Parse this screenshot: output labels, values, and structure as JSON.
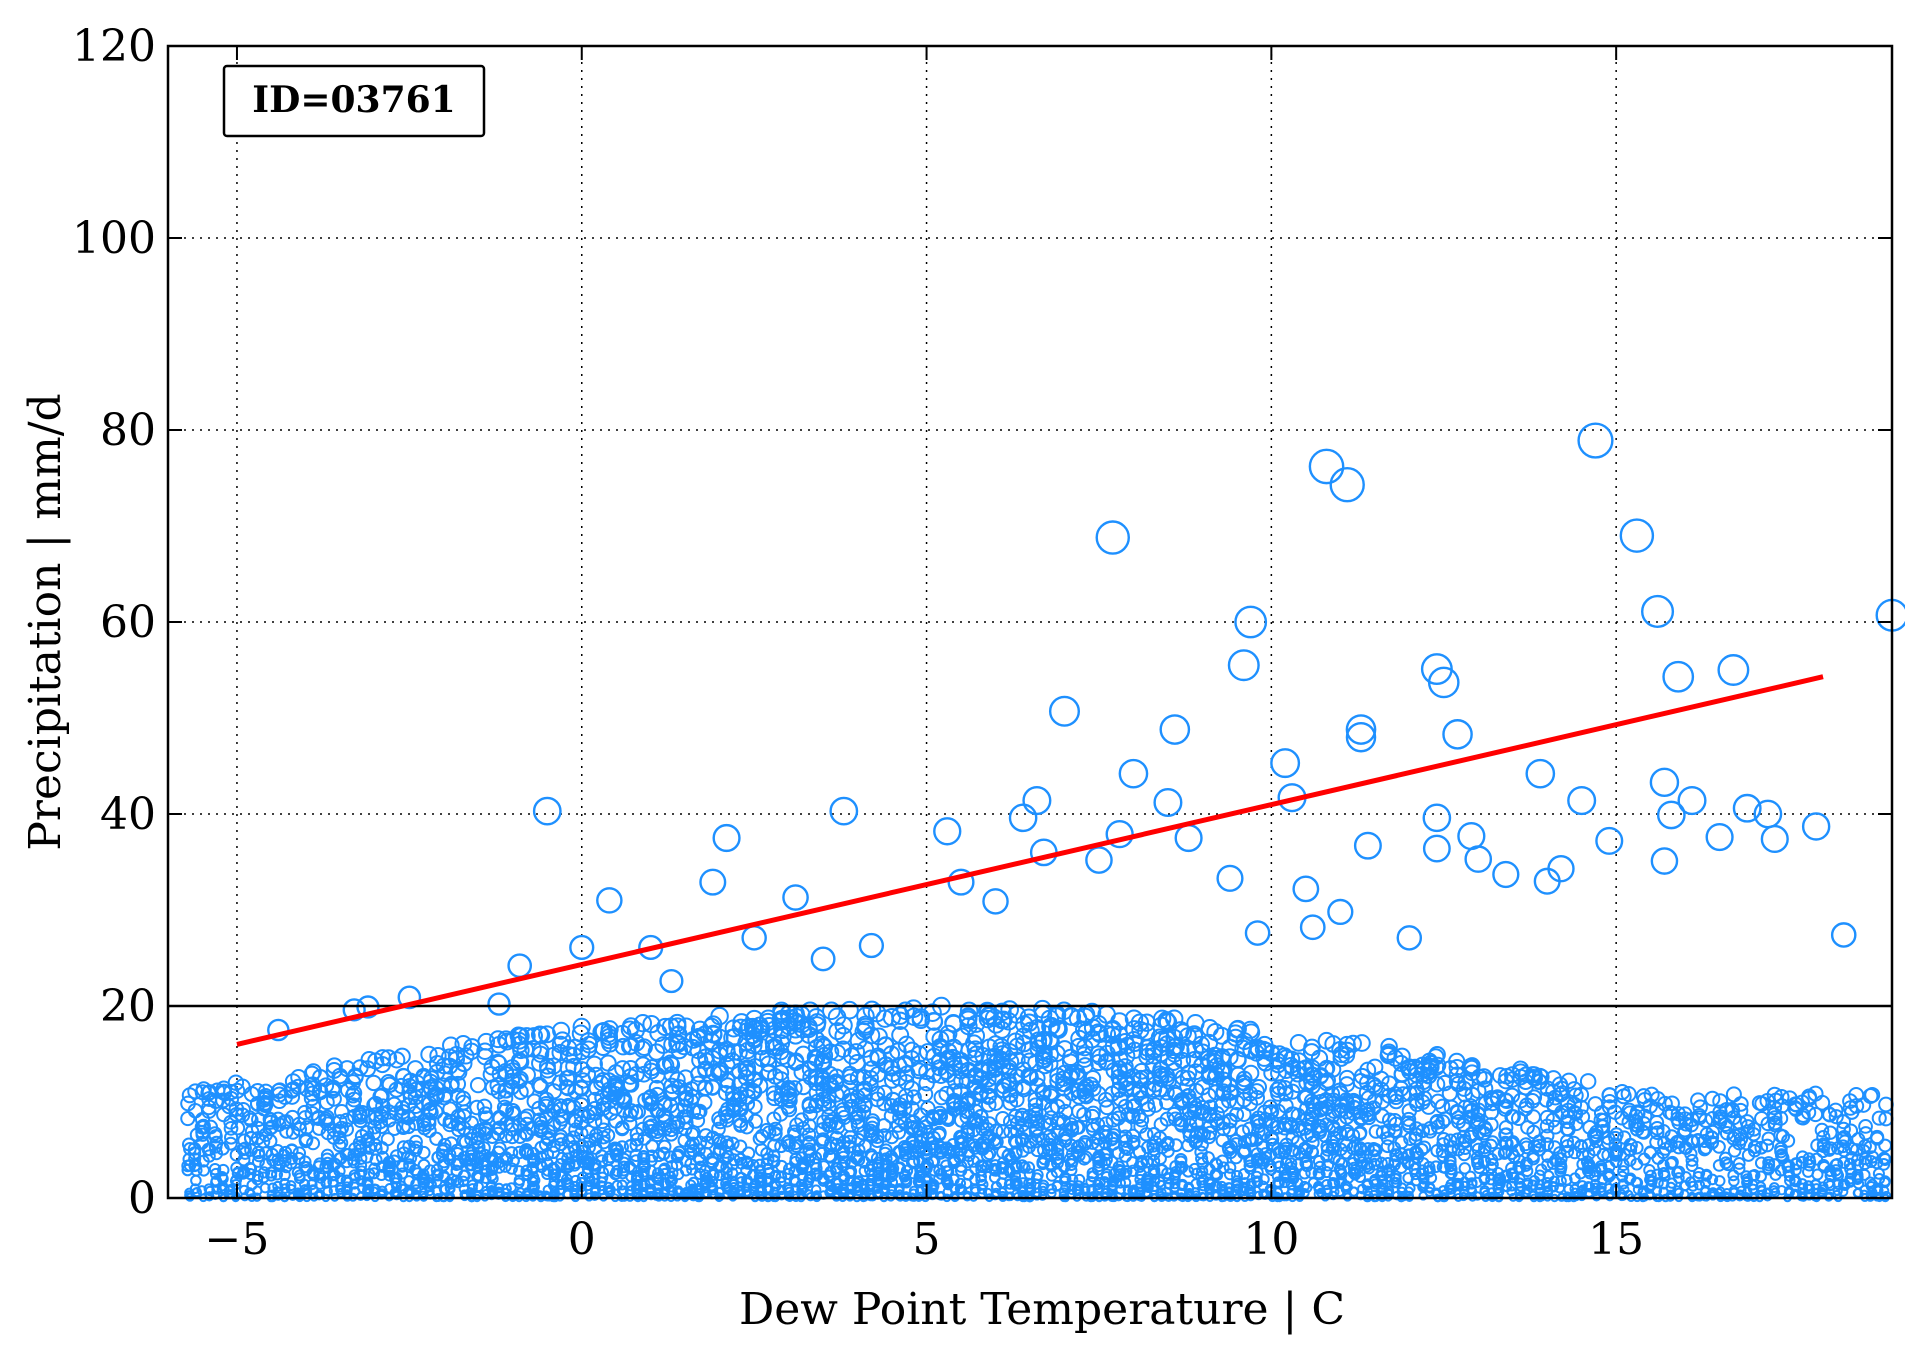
{
  "chart_data": {
    "type": "scatter",
    "title": "",
    "xlabel": "Dew Point Temperature | C",
    "ylabel": "Precipitation | mm/d",
    "xlim": [
      -6,
      19
    ],
    "ylim": [
      0,
      120
    ],
    "xticks": [
      -5,
      0,
      5,
      10,
      15
    ],
    "yticks": [
      0,
      20,
      40,
      60,
      80,
      100,
      120
    ],
    "xtick_labels": [
      "−5",
      "0",
      "5",
      "10",
      "15"
    ],
    "ytick_labels": [
      "0",
      "20",
      "40",
      "60",
      "80",
      "100",
      "120"
    ],
    "grid": true,
    "annotation": "ID=03761",
    "annotation_position": "top-left",
    "threshold_line": {
      "y": 20,
      "color": "#000000"
    },
    "fit_line": {
      "x": [
        -5,
        18
      ],
      "y": [
        16,
        54.3
      ],
      "color": "#ff0000"
    },
    "marker_color": "#1e90ff",
    "series": [
      {
        "marker": "open-circle",
        "note_size": "marker size grows with precipitation",
        "x": [
          -0.5,
          3.8,
          7.7,
          9.6,
          9.7,
          7.0,
          8.6,
          10.2,
          10.3,
          10.8,
          11.1,
          11.3,
          11.3,
          12.4,
          12.5,
          12.7,
          12.4,
          13.9,
          14.5,
          14.7,
          15.3,
          15.6,
          15.7,
          15.9,
          16.7,
          17.9,
          19.0,
          8.0,
          8.5,
          6.6,
          6.4,
          5.3,
          2.1,
          1.9,
          0.4,
          -0.9,
          -1.2,
          -2.5,
          -3.1,
          -3.3,
          -4.4,
          0.0,
          1.0,
          3.1,
          5.5,
          6.7,
          7.8,
          8.8,
          9.4,
          10.5,
          11.0,
          11.4,
          12.0,
          12.4,
          12.9,
          13.4,
          14.2,
          14.9,
          15.8,
          16.1,
          16.5,
          17.2,
          18.3,
          16.9,
          17.3,
          15.7,
          14.0,
          13.0,
          10.6,
          9.8,
          7.5,
          6.0,
          4.2,
          3.5,
          2.5,
          1.3
        ],
        "y": [
          40.3,
          40.3,
          68.8,
          55.5,
          60.0,
          50.7,
          48.8,
          45.3,
          41.7,
          76.2,
          74.3,
          48.8,
          48.0,
          55.1,
          53.7,
          48.3,
          39.6,
          44.2,
          41.4,
          78.9,
          69.0,
          61.1,
          43.3,
          54.3,
          55.0,
          38.7,
          60.7,
          44.2,
          41.2,
          41.4,
          39.6,
          38.2,
          37.5,
          32.9,
          31.0,
          24.2,
          20.2,
          20.9,
          19.9,
          19.6,
          17.5,
          26.1,
          26.1,
          31.3,
          32.9,
          36.0,
          37.9,
          37.5,
          33.3,
          32.2,
          29.8,
          36.7,
          27.1,
          36.4,
          37.7,
          33.7,
          34.3,
          37.2,
          39.9,
          41.4,
          37.6,
          40.0,
          27.4,
          40.6,
          37.4,
          35.1,
          33.0,
          35.3,
          28.2,
          27.6,
          35.2,
          30.9,
          26.3,
          24.9,
          27.1,
          22.6
        ]
      }
    ]
  }
}
